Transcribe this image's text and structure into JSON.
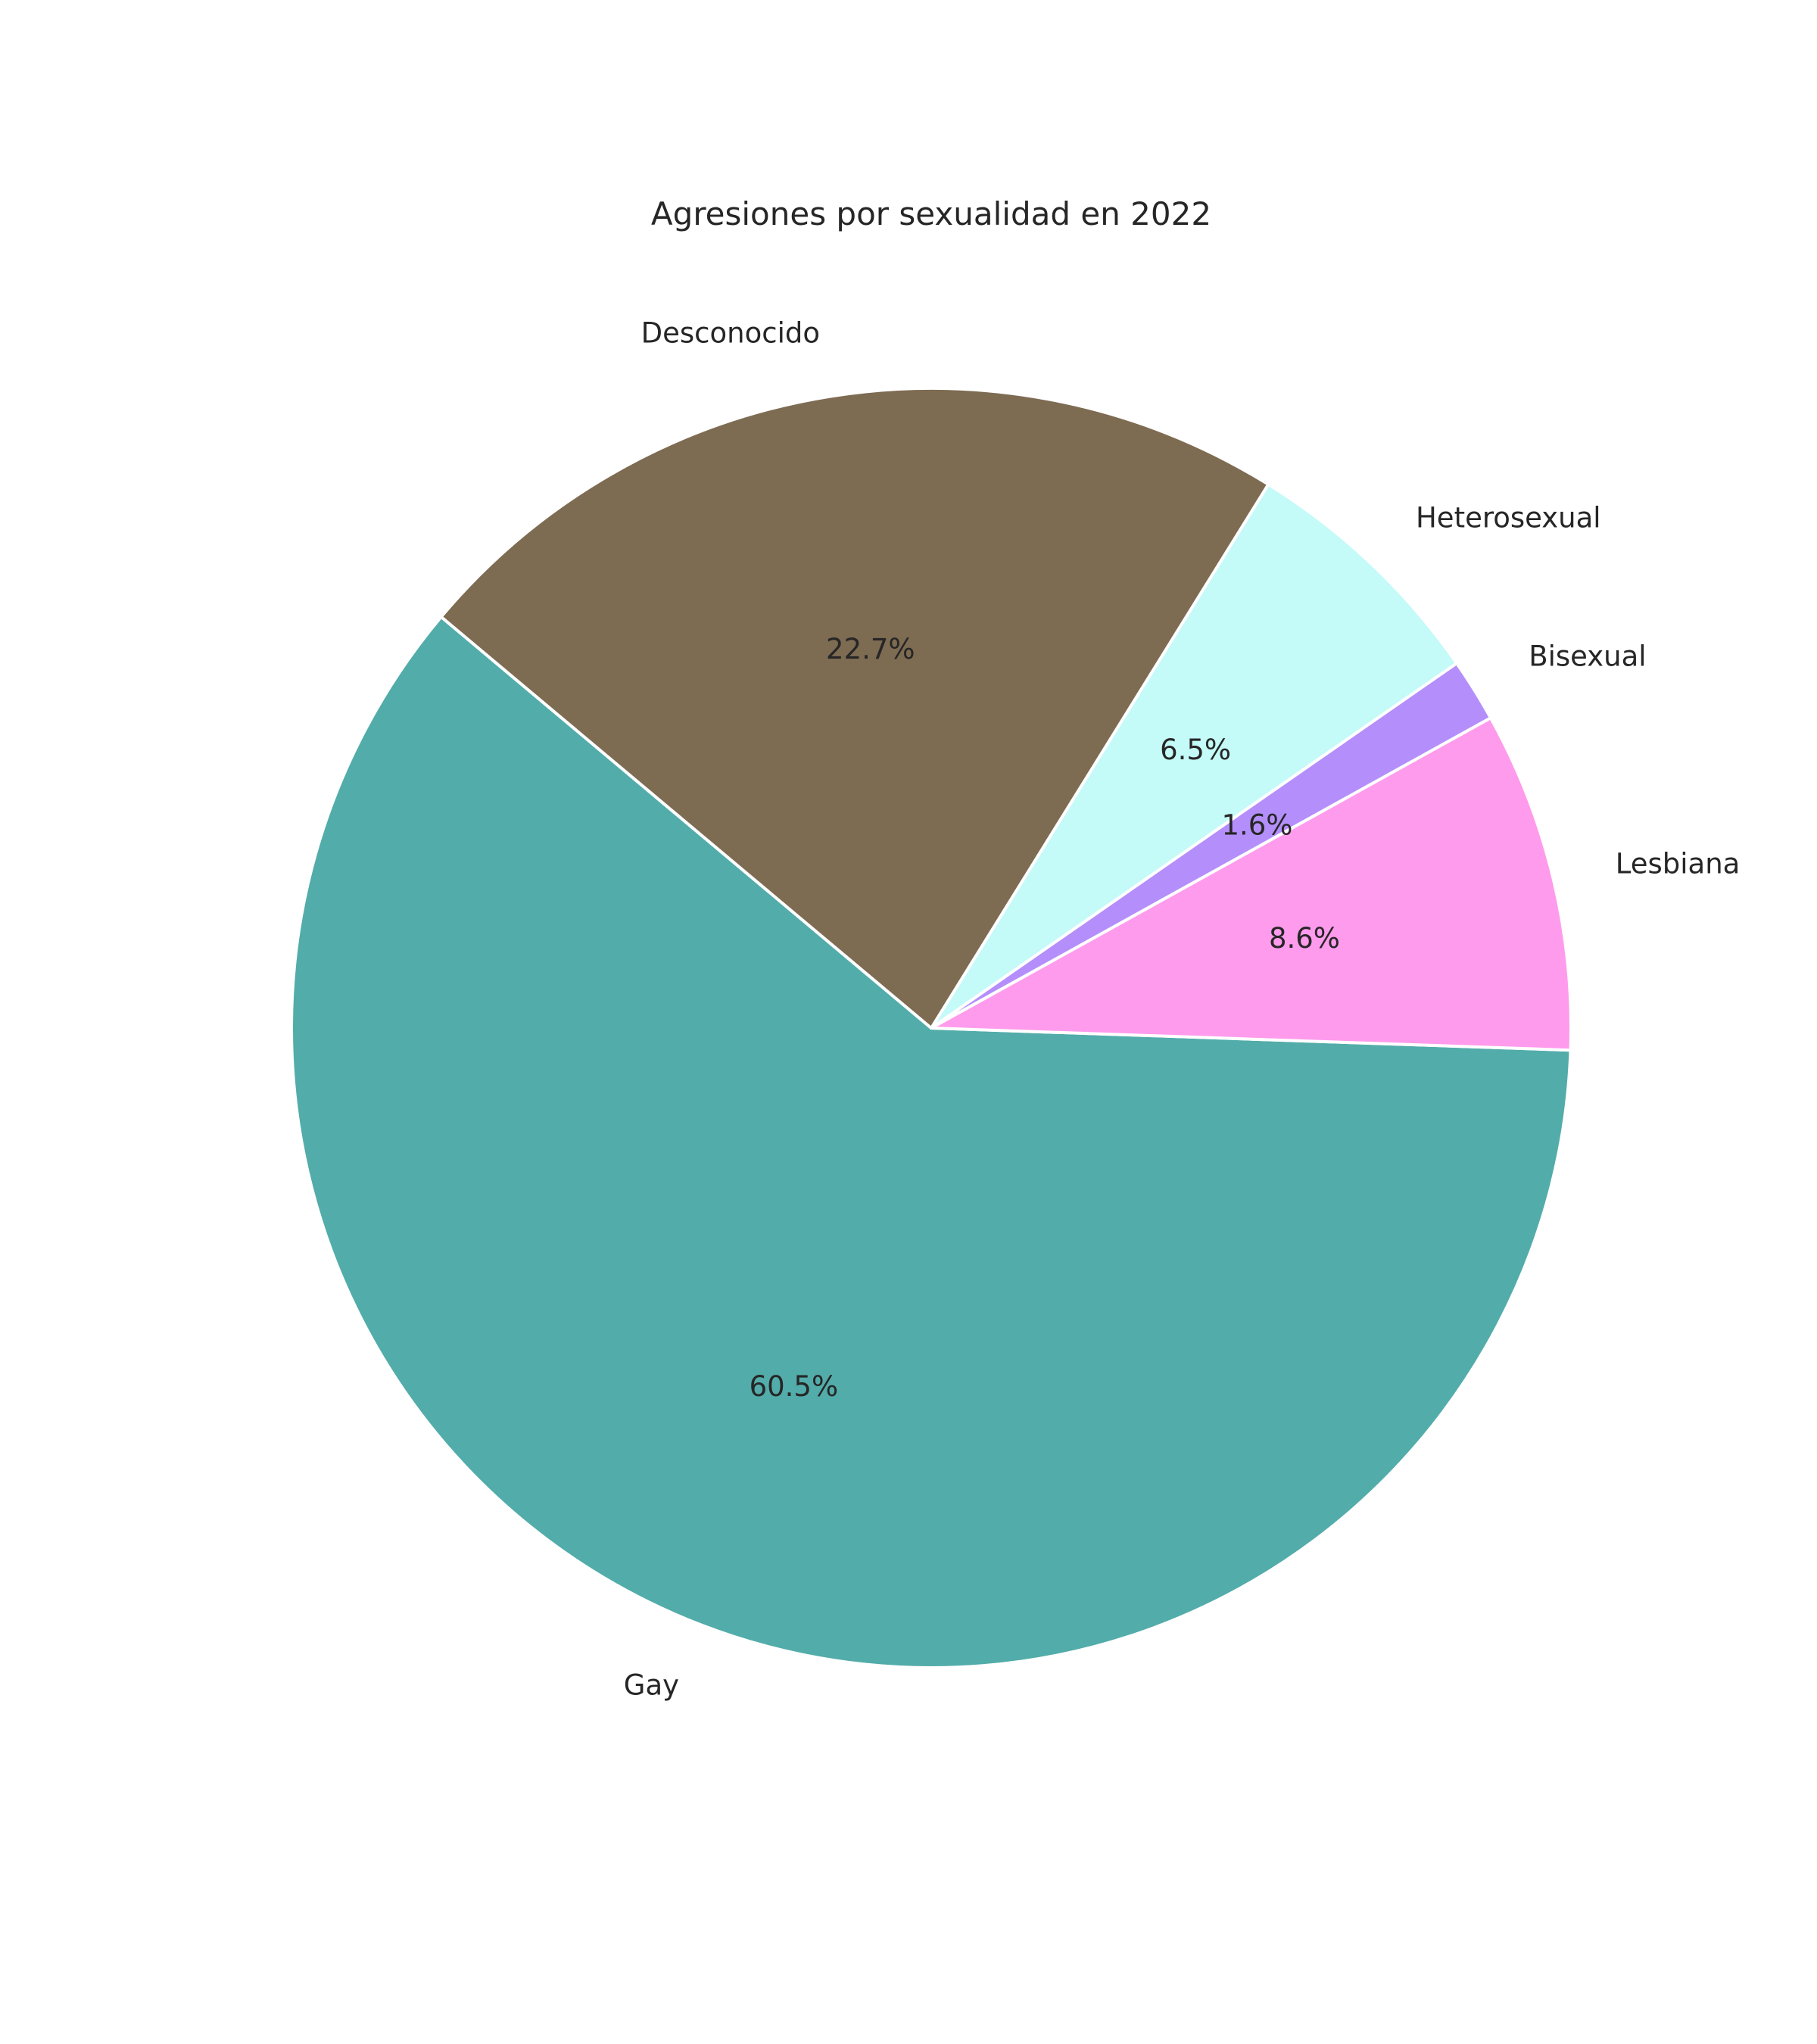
{
  "chart_data": {
    "type": "pie",
    "title": "Agresiones por sexualidad en 2022",
    "start_angle_deg": 140,
    "direction": "counterclockwise",
    "slices": [
      {
        "label": "Gay",
        "value": 60.5,
        "pct_label": "60.5%",
        "color": "#52ACAA"
      },
      {
        "label": "Lesbiana",
        "value": 8.6,
        "pct_label": "8.6%",
        "color": "#FF9BED"
      },
      {
        "label": "Bisexual",
        "value": 1.6,
        "pct_label": "1.6%",
        "color": "#B48FFB"
      },
      {
        "label": "Heterosexual",
        "value": 6.5,
        "pct_label": "6.5%",
        "color": "#C4FAF7"
      },
      {
        "label": "Desconocido",
        "value": 22.7,
        "pct_label": "22.7%",
        "color": "#7D6B52"
      }
    ]
  }
}
